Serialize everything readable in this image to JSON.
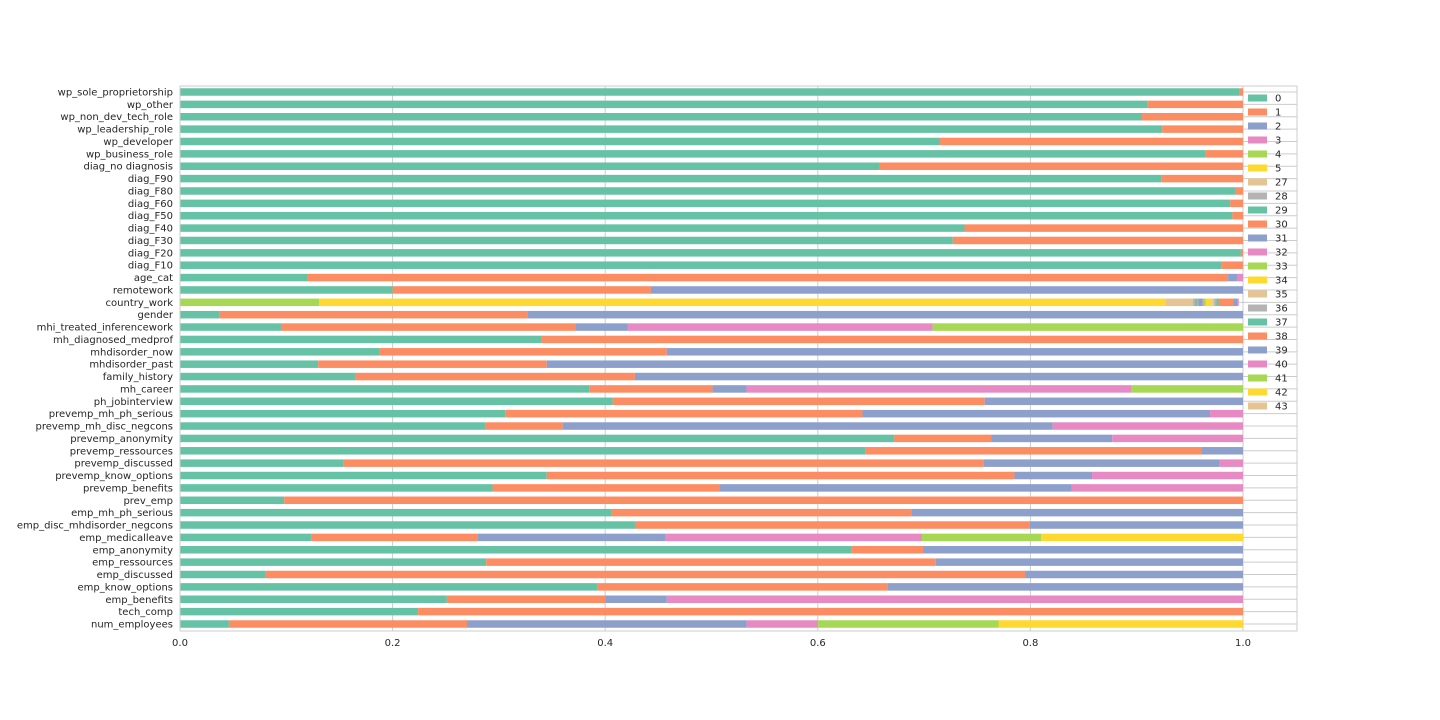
{
  "chart_data": {
    "type": "bar",
    "orientation": "horizontal",
    "stacked": true,
    "categories": [
      "wp_sole_proprietorship",
      "wp_other",
      "wp_non_dev_tech_role",
      "wp_leadership_role",
      "wp_developer",
      "wp_business_role",
      "diag_no diagnosis",
      "diag_F90",
      "diag_F80",
      "diag_F60",
      "diag_F50",
      "diag_F40",
      "diag_F30",
      "diag_F20",
      "diag_F10",
      "age_cat",
      "remotework",
      "country_work",
      "gender",
      "mhi_treated_inferencework",
      "mh_diagnosed_medprof",
      "mhdisorder_now",
      "mhdisorder_past",
      "family_history",
      "mh_career",
      "ph_jobinterview",
      "prevemp_mh_ph_serious",
      "prevemp_mh_disc_negcons",
      "prevemp_anonymity",
      "prevemp_ressources",
      "prevemp_discussed",
      "prevemp_know_options",
      "prevemp_benefits",
      "prev_emp",
      "emp_mh_ph_serious",
      "emp_disc_mhdisorder_negcons",
      "emp_medicalleave",
      "emp_anonymity",
      "emp_ressources",
      "emp_discussed",
      "emp_know_options",
      "emp_benefits",
      "tech_comp",
      "num_employees"
    ],
    "series": [
      {
        "name": "0",
        "color": "#66c2a5",
        "values": [
          0.997,
          0.91,
          0.905,
          0.924,
          0.715,
          0.965,
          0.658,
          0.923,
          0.993,
          0.988,
          0.99,
          0.738,
          0.727,
          0.998,
          0.98,
          0.12,
          0.2,
          0,
          0.037,
          0.095,
          0.34,
          0.188,
          0.13,
          0.165,
          0.385,
          0.407,
          0.306,
          0.287,
          0.672,
          0.645,
          0.154,
          0.345,
          0.294,
          0.098,
          0.406,
          0.428,
          0.124,
          0.632,
          0.288,
          0.08,
          0.393,
          0.251,
          0.224,
          0.046
        ]
      },
      {
        "name": "1",
        "color": "#fc8d62",
        "values": [
          0.003,
          0.09,
          0.095,
          0.076,
          0.285,
          0.035,
          0.342,
          0.077,
          0.007,
          0.012,
          0.01,
          0.262,
          0.273,
          0.002,
          0.02,
          0.866,
          0.243,
          0,
          0.29,
          0.277,
          0.66,
          0.27,
          0.215,
          0.263,
          0.116,
          0.35,
          0.336,
          0.073,
          0.091,
          0.316,
          0.602,
          0.44,
          0.214,
          0.902,
          0.282,
          0.371,
          0.156,
          0.067,
          0.423,
          0.715,
          0.273,
          0.149,
          0.776,
          0.224
        ]
      },
      {
        "name": "2",
        "color": "#8da0cb",
        "values": [
          0,
          0,
          0,
          0,
          0,
          0,
          0,
          0,
          0,
          0,
          0,
          0,
          0,
          0,
          0,
          0.009,
          0.557,
          0,
          0.673,
          0.049,
          0,
          0.542,
          0.655,
          0.572,
          0.032,
          0.243,
          0.327,
          0.461,
          0.114,
          0.039,
          0.222,
          0.073,
          0.331,
          0,
          0.312,
          0.201,
          0.177,
          0.301,
          0.289,
          0.205,
          0.334,
          0.058,
          0,
          0.263
        ]
      },
      {
        "name": "3",
        "color": "#e78ac3",
        "values": [
          0,
          0,
          0,
          0,
          0,
          0,
          0,
          0,
          0,
          0,
          0,
          0,
          0,
          0,
          0,
          0.005,
          0,
          0,
          0,
          0.287,
          0,
          0,
          0,
          0,
          0.362,
          0,
          0.031,
          0.179,
          0.123,
          0,
          0.022,
          0.142,
          0.161,
          0,
          0,
          0,
          0.241,
          0,
          0,
          0,
          0,
          0.542,
          0,
          0.067
        ]
      },
      {
        "name": "4",
        "color": "#a6d854",
        "values": [
          0,
          0,
          0,
          0,
          0,
          0,
          0,
          0,
          0,
          0,
          0,
          0,
          0,
          0,
          0,
          0,
          0,
          0.131,
          0,
          0.292,
          0,
          0,
          0,
          0,
          0.105,
          0,
          0,
          0,
          0,
          0,
          0,
          0,
          0,
          0,
          0,
          0,
          0.112,
          0,
          0,
          0,
          0,
          0,
          0,
          0.17
        ]
      },
      {
        "name": "5",
        "color": "#ffd92f",
        "values": [
          0,
          0,
          0,
          0,
          0,
          0,
          0,
          0,
          0,
          0,
          0,
          0,
          0,
          0,
          0,
          0,
          0,
          0.796,
          0,
          0,
          0,
          0,
          0,
          0,
          0,
          0,
          0,
          0,
          0,
          0,
          0,
          0,
          0,
          0,
          0,
          0,
          0.19,
          0,
          0,
          0,
          0,
          0,
          0,
          0.23
        ]
      },
      {
        "name": "27",
        "color": "#e5c494",
        "values": [
          0,
          0,
          0,
          0,
          0,
          0,
          0,
          0,
          0,
          0,
          0,
          0,
          0,
          0,
          0,
          0,
          0,
          0.026,
          0,
          0,
          0,
          0,
          0,
          0,
          0,
          0,
          0,
          0,
          0,
          0,
          0,
          0,
          0,
          0,
          0,
          0,
          0,
          0,
          0,
          0,
          0,
          0,
          0,
          0
        ]
      },
      {
        "name": "28",
        "color": "#b3b3b3",
        "values": [
          0,
          0,
          0,
          0,
          0,
          0,
          0,
          0,
          0,
          0,
          0,
          0,
          0,
          0,
          0,
          0,
          0,
          0.002,
          0,
          0,
          0,
          0,
          0,
          0,
          0,
          0,
          0,
          0,
          0,
          0,
          0,
          0,
          0,
          0,
          0,
          0,
          0,
          0,
          0,
          0,
          0,
          0,
          0,
          0
        ]
      },
      {
        "name": "29",
        "color": "#66c2a5",
        "values": [
          0,
          0,
          0,
          0,
          0,
          0,
          0,
          0,
          0,
          0,
          0,
          0,
          0,
          0,
          0,
          0,
          0,
          0.002,
          0,
          0,
          0,
          0,
          0,
          0,
          0,
          0,
          0,
          0,
          0,
          0,
          0,
          0,
          0,
          0,
          0,
          0,
          0,
          0,
          0,
          0,
          0,
          0,
          0,
          0
        ]
      },
      {
        "name": "30",
        "color": "#fc8d62",
        "values": [
          0,
          0,
          0,
          0,
          0,
          0,
          0,
          0,
          0,
          0,
          0,
          0,
          0,
          0,
          0,
          0,
          0,
          0.001,
          0,
          0,
          0,
          0,
          0,
          0,
          0,
          0,
          0,
          0,
          0,
          0,
          0,
          0,
          0,
          0,
          0,
          0,
          0,
          0,
          0,
          0,
          0,
          0,
          0,
          0
        ]
      },
      {
        "name": "31",
        "color": "#8da0cb",
        "values": [
          0,
          0,
          0,
          0,
          0,
          0,
          0,
          0,
          0,
          0,
          0,
          0,
          0,
          0,
          0,
          0,
          0,
          0.004,
          0,
          0,
          0,
          0,
          0,
          0,
          0,
          0,
          0,
          0,
          0,
          0,
          0,
          0,
          0,
          0,
          0,
          0,
          0,
          0,
          0,
          0,
          0,
          0,
          0,
          0
        ]
      },
      {
        "name": "32",
        "color": "#e78ac3",
        "values": [
          0,
          0,
          0,
          0,
          0,
          0,
          0,
          0,
          0,
          0,
          0,
          0,
          0,
          0,
          0,
          0,
          0,
          0.001,
          0,
          0,
          0,
          0,
          0,
          0,
          0,
          0,
          0,
          0,
          0,
          0,
          0,
          0,
          0,
          0,
          0,
          0,
          0,
          0,
          0,
          0,
          0,
          0,
          0,
          0
        ]
      },
      {
        "name": "33",
        "color": "#a6d854",
        "values": [
          0,
          0,
          0,
          0,
          0,
          0,
          0,
          0,
          0,
          0,
          0,
          0,
          0,
          0,
          0,
          0,
          0,
          0.002,
          0,
          0,
          0,
          0,
          0,
          0,
          0,
          0,
          0,
          0,
          0,
          0,
          0,
          0,
          0,
          0,
          0,
          0,
          0,
          0,
          0,
          0,
          0,
          0,
          0,
          0
        ]
      },
      {
        "name": "34",
        "color": "#ffd92f",
        "values": [
          0,
          0,
          0,
          0,
          0,
          0,
          0,
          0,
          0,
          0,
          0,
          0,
          0,
          0,
          0,
          0,
          0,
          0.006,
          0,
          0,
          0,
          0,
          0,
          0,
          0,
          0,
          0,
          0,
          0,
          0,
          0,
          0,
          0,
          0,
          0,
          0,
          0,
          0,
          0,
          0,
          0,
          0,
          0,
          0
        ]
      },
      {
        "name": "35",
        "color": "#e5c494",
        "values": [
          0,
          0,
          0,
          0,
          0,
          0,
          0,
          0,
          0,
          0,
          0,
          0,
          0,
          0,
          0,
          0,
          0,
          0.002,
          0,
          0,
          0,
          0,
          0,
          0,
          0,
          0,
          0,
          0,
          0,
          0,
          0,
          0,
          0,
          0,
          0,
          0,
          0,
          0,
          0,
          0,
          0,
          0,
          0,
          0
        ]
      },
      {
        "name": "36",
        "color": "#b3b3b3",
        "values": [
          0,
          0,
          0,
          0,
          0,
          0,
          0,
          0,
          0,
          0,
          0,
          0,
          0,
          0,
          0,
          0,
          0,
          0.002,
          0,
          0,
          0,
          0,
          0,
          0,
          0,
          0,
          0,
          0,
          0,
          0,
          0,
          0,
          0,
          0,
          0,
          0,
          0,
          0,
          0,
          0,
          0,
          0,
          0,
          0
        ]
      },
      {
        "name": "37",
        "color": "#66c2a5",
        "values": [
          0,
          0,
          0,
          0,
          0,
          0,
          0,
          0,
          0,
          0,
          0,
          0,
          0,
          0,
          0,
          0,
          0,
          0.002,
          0,
          0,
          0,
          0,
          0,
          0,
          0,
          0,
          0,
          0,
          0,
          0,
          0,
          0,
          0,
          0,
          0,
          0,
          0,
          0,
          0,
          0,
          0,
          0,
          0,
          0
        ]
      },
      {
        "name": "38",
        "color": "#fc8d62",
        "values": [
          0,
          0,
          0,
          0,
          0,
          0,
          0,
          0,
          0,
          0,
          0,
          0,
          0,
          0,
          0,
          0,
          0,
          0.014,
          0,
          0,
          0,
          0,
          0,
          0,
          0,
          0,
          0,
          0,
          0,
          0,
          0,
          0,
          0,
          0,
          0,
          0,
          0,
          0,
          0,
          0,
          0,
          0,
          0,
          0
        ]
      },
      {
        "name": "39",
        "color": "#8da0cb",
        "values": [
          0,
          0,
          0,
          0,
          0,
          0,
          0,
          0,
          0,
          0,
          0,
          0,
          0,
          0,
          0,
          0,
          0,
          0.004,
          0,
          0,
          0,
          0,
          0,
          0,
          0,
          0,
          0,
          0,
          0,
          0,
          0,
          0,
          0,
          0,
          0,
          0,
          0,
          0,
          0,
          0,
          0,
          0,
          0,
          0
        ]
      },
      {
        "name": "40",
        "color": "#e78ac3",
        "values": [
          0,
          0,
          0,
          0,
          0,
          0,
          0,
          0,
          0,
          0,
          0,
          0,
          0,
          0,
          0,
          0,
          0,
          0.001,
          0,
          0,
          0,
          0,
          0,
          0,
          0,
          0,
          0,
          0,
          0,
          0,
          0,
          0,
          0,
          0,
          0,
          0,
          0,
          0,
          0,
          0,
          0,
          0,
          0,
          0
        ]
      },
      {
        "name": "41",
        "color": "#a6d854",
        "values": [
          0,
          0,
          0,
          0,
          0,
          0,
          0,
          0,
          0,
          0,
          0,
          0,
          0,
          0,
          0,
          0,
          0,
          0,
          0,
          0,
          0,
          0,
          0,
          0,
          0,
          0,
          0,
          0,
          0,
          0,
          0,
          0,
          0,
          0,
          0,
          0,
          0,
          0,
          0,
          0,
          0,
          0,
          0,
          0
        ]
      },
      {
        "name": "42",
        "color": "#ffd92f",
        "values": [
          0,
          0,
          0,
          0,
          0,
          0,
          0,
          0,
          0,
          0,
          0,
          0,
          0,
          0,
          0,
          0,
          0,
          0,
          0,
          0,
          0,
          0,
          0,
          0,
          0,
          0,
          0,
          0,
          0,
          0,
          0,
          0,
          0,
          0,
          0,
          0,
          0,
          0,
          0,
          0,
          0,
          0,
          0,
          0
        ]
      },
      {
        "name": "43",
        "color": "#e5c494",
        "values": [
          0,
          0,
          0,
          0,
          0,
          0,
          0,
          0,
          0,
          0,
          0,
          0,
          0,
          0,
          0,
          0,
          0,
          0,
          0,
          0,
          0,
          0,
          0,
          0,
          0,
          0,
          0,
          0,
          0,
          0,
          0,
          0,
          0,
          0,
          0,
          0,
          0,
          0,
          0,
          0,
          0,
          0,
          0,
          0
        ]
      }
    ],
    "xlim": [
      0,
      1.05
    ],
    "xticks": [
      "0.0",
      "0.2",
      "0.4",
      "0.6",
      "0.8",
      "1.0"
    ],
    "xtick_values": [
      0,
      0.2,
      0.4,
      0.6,
      0.8,
      1.0
    ],
    "grid": true,
    "legend_position": "right-inside-top",
    "title": "",
    "xlabel": "",
    "ylabel": ""
  }
}
